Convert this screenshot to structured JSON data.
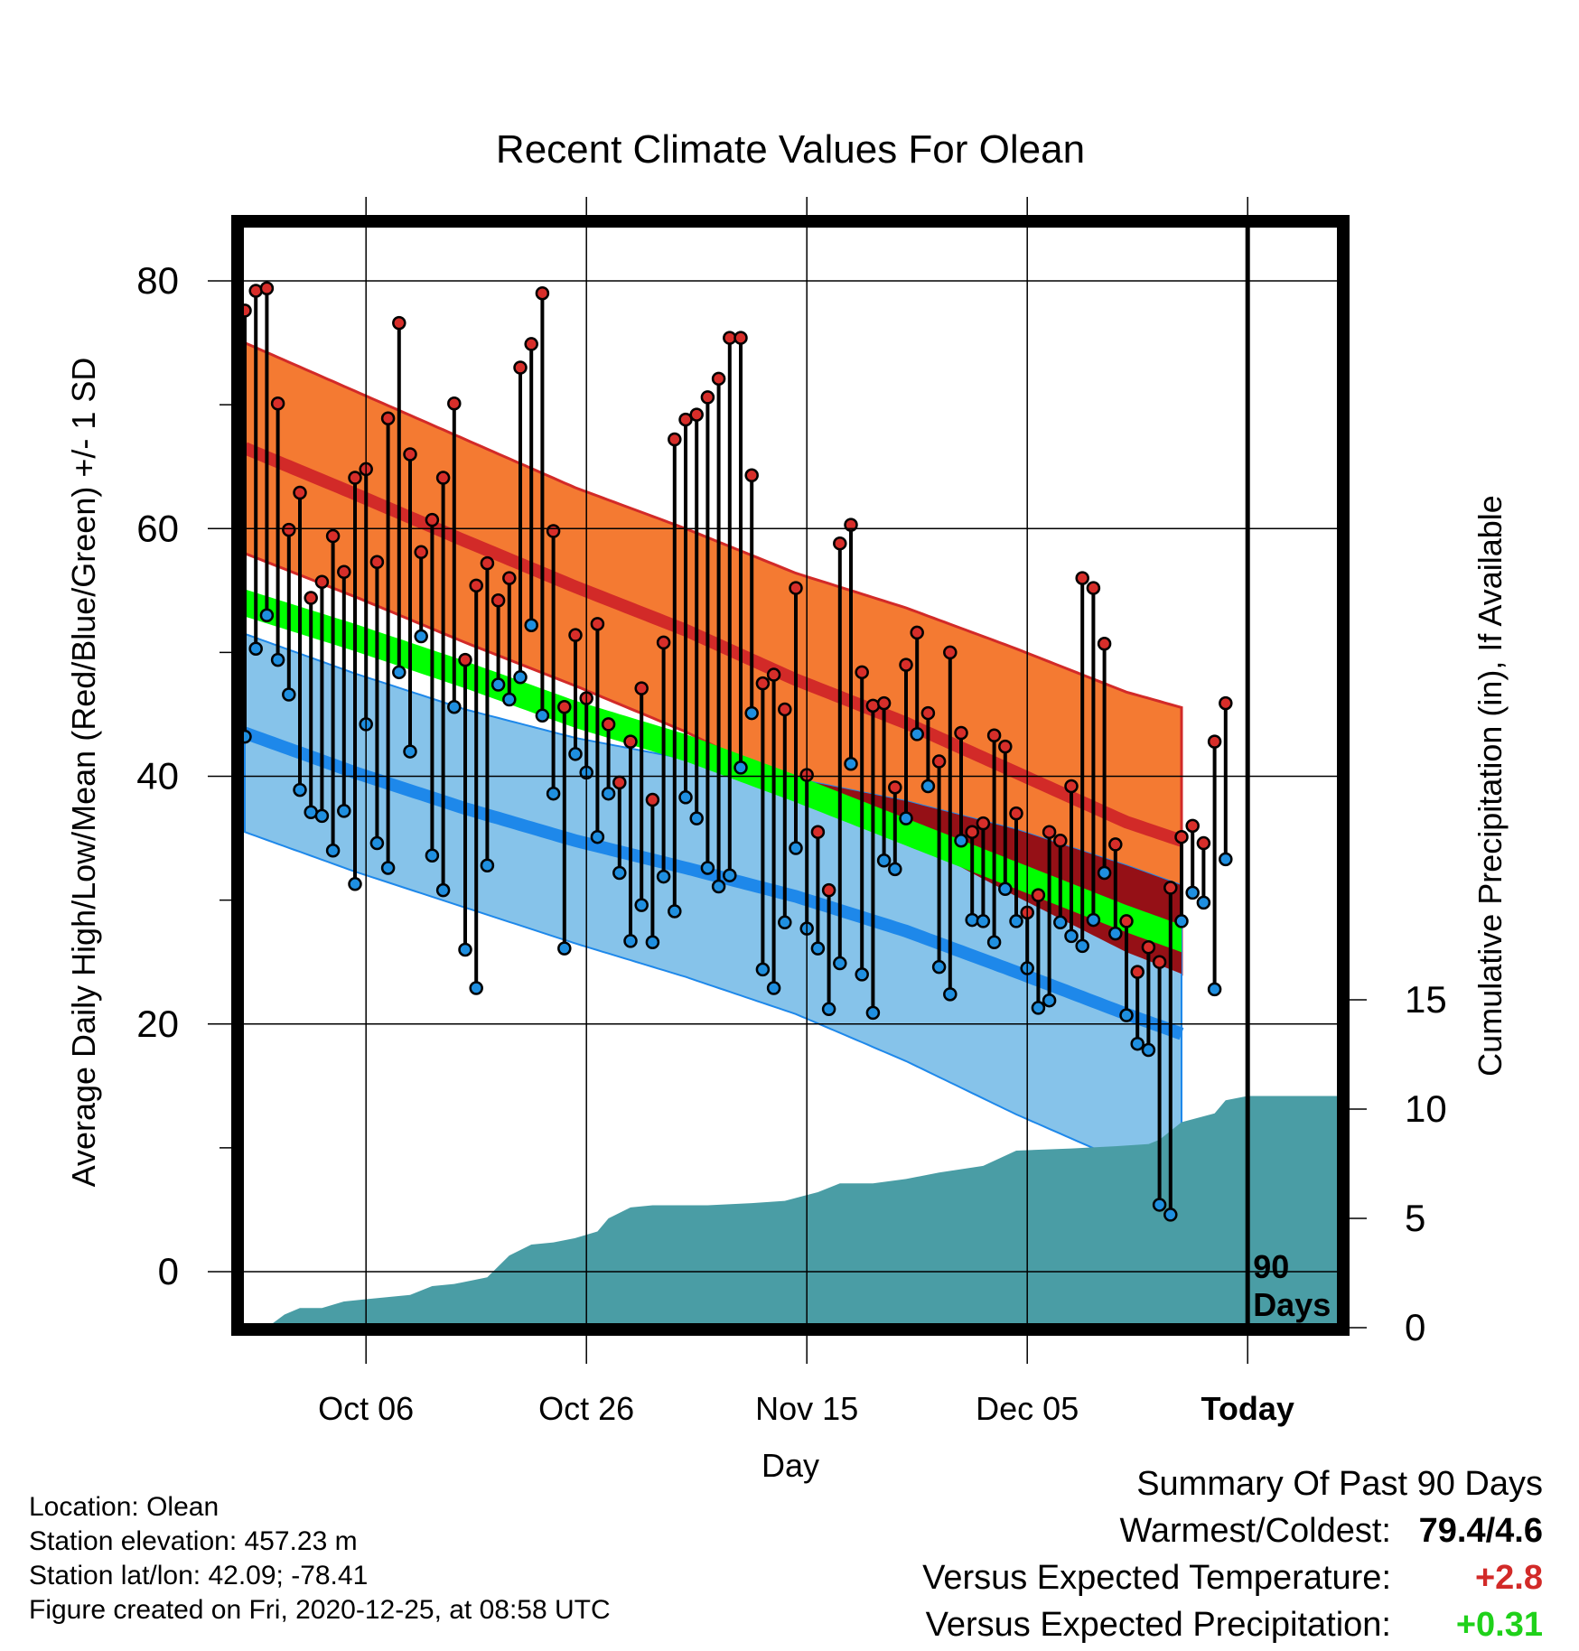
{
  "chart_data": {
    "type": "line",
    "title": "Recent Climate Values For Olean",
    "xlabel": "Day",
    "ylabel": "Average Daily High/Low/Mean (Red/Blue/Green) +/- 1 SD",
    "y2label": "Cumulative Precipitation (in), If Available",
    "ylim": [
      -5,
      86
    ],
    "y2lim": [
      0,
      17
    ],
    "yticks": [
      0,
      20,
      40,
      60,
      80
    ],
    "y2ticks": [
      0,
      5,
      10,
      15
    ],
    "grid": true,
    "xtick_labels": [
      {
        "day": 11,
        "label": "Oct 06"
      },
      {
        "day": 31,
        "label": "Oct 26"
      },
      {
        "day": 51,
        "label": "Nov 15"
      },
      {
        "day": 71,
        "label": "Dec 05"
      },
      {
        "day": 91,
        "label": "Today"
      }
    ],
    "today_label": "90 Days",
    "colors": {
      "high_band": "#f47a32",
      "high_line": "#d22a28",
      "low_band": "#86c3ea",
      "low_line": "#1e88ea",
      "mean_band": "#00ff00",
      "overlap": "#951016",
      "precip": "#4a9da5",
      "marker_high": "#d72e2a",
      "marker_low": "#1f8fe0"
    },
    "normals": {
      "day": [
        0,
        10,
        20,
        30,
        40,
        50,
        60,
        70,
        80,
        90,
        100
      ],
      "high": [
        66.5,
        62.8,
        59.0,
        55.3,
        51.8,
        47.8,
        44.3,
        40.3,
        36.3,
        33.3,
        31.5
      ],
      "high_sd": [
        8.5,
        8.3,
        8.2,
        8.0,
        8.2,
        8.6,
        9.3,
        10.0,
        10.5,
        11.0,
        11.3
      ],
      "low": [
        43.5,
        40.3,
        37.4,
        34.8,
        32.6,
        30.3,
        27.5,
        24.2,
        20.8,
        17.6,
        15.6
      ],
      "low_sd": [
        8.0,
        8.0,
        8.0,
        8.3,
        8.8,
        9.5,
        10.5,
        11.5,
        12.0,
        12.0,
        11.7
      ],
      "mean": [
        54.0,
        51.2,
        48.2,
        45.0,
        42.3,
        39.0,
        35.5,
        32.0,
        28.5,
        25.3,
        23.3
      ],
      "mean_sd": [
        1.1,
        1.1,
        1.1,
        1.1,
        1.1,
        1.1,
        1.1,
        1.1,
        1.1,
        1.1,
        1.1
      ]
    },
    "series": [
      {
        "name": "High",
        "values": [
          77.6,
          79.2,
          79.4,
          70.1,
          59.9,
          62.9,
          54.4,
          55.7,
          59.4,
          56.5,
          64.1,
          64.8,
          57.3,
          68.9,
          76.6,
          66.0,
          58.1,
          60.7,
          64.1,
          70.1,
          49.4,
          55.4,
          57.2,
          54.2,
          56.0,
          73.0,
          74.9,
          79.0,
          59.8,
          45.6,
          51.4,
          46.3,
          52.3,
          44.2,
          39.5,
          42.8,
          47.1,
          38.1,
          50.8,
          67.2,
          68.8,
          69.2,
          70.6,
          72.1,
          75.4,
          75.4,
          64.3,
          47.5,
          48.2,
          45.4,
          55.2,
          40.1,
          35.5,
          30.8,
          58.8,
          60.3,
          48.4,
          45.7,
          45.9,
          39.1,
          49.0,
          51.6,
          45.1,
          41.2,
          50.0,
          43.5,
          35.5,
          36.2,
          43.3,
          42.4,
          37.0,
          29.0,
          30.4,
          35.5,
          34.8,
          39.2,
          56.0,
          55.2,
          50.7,
          34.5,
          28.3,
          24.2,
          26.2,
          25.0,
          31.0,
          35.1,
          36.0,
          34.6,
          42.8,
          45.9
        ]
      },
      {
        "name": "Low",
        "values": [
          43.2,
          50.3,
          53.0,
          49.4,
          46.6,
          38.9,
          37.1,
          36.8,
          34.0,
          37.2,
          31.3,
          44.2,
          34.6,
          32.6,
          48.4,
          42.0,
          51.3,
          33.6,
          30.8,
          45.6,
          26.0,
          22.9,
          32.8,
          47.4,
          46.2,
          48.0,
          52.2,
          44.9,
          38.6,
          26.1,
          41.8,
          40.3,
          35.1,
          38.6,
          32.2,
          26.7,
          29.6,
          26.6,
          31.9,
          29.1,
          38.3,
          36.6,
          32.6,
          31.1,
          32.0,
          40.7,
          45.1,
          24.4,
          22.9,
          28.2,
          34.2,
          27.7,
          26.1,
          21.2,
          24.9,
          41.0,
          24.0,
          20.9,
          33.2,
          32.5,
          36.6,
          43.4,
          39.2,
          24.6,
          22.4,
          34.8,
          28.4,
          28.3,
          26.6,
          30.9,
          28.3,
          24.5,
          21.3,
          21.9,
          28.2,
          27.1,
          26.3,
          28.4,
          32.2,
          27.3,
          20.7,
          18.4,
          17.9,
          5.4,
          4.6,
          28.3,
          30.6,
          29.8,
          22.8,
          33.3
        ]
      }
    ],
    "precip_cumulative": {
      "day": [
        0,
        2,
        3.6,
        5,
        7,
        9,
        11,
        13,
        15,
        17,
        19,
        22,
        24,
        26,
        28,
        30,
        32,
        33,
        35,
        37,
        42,
        46,
        49,
        52,
        54,
        57,
        60,
        63,
        67,
        70,
        75,
        79,
        82,
        83,
        85,
        88,
        89,
        91,
        100
      ],
      "value": [
        0,
        0,
        0.6,
        0.9,
        0.9,
        1.2,
        1.3,
        1.4,
        1.5,
        1.9,
        2.0,
        2.3,
        3.3,
        3.8,
        3.9,
        4.1,
        4.4,
        5.0,
        5.5,
        5.6,
        5.6,
        5.7,
        5.8,
        6.2,
        6.6,
        6.6,
        6.8,
        7.1,
        7.4,
        8.1,
        8.2,
        8.3,
        8.4,
        8.6,
        9.4,
        9.8,
        10.4,
        10.6,
        10.6
      ]
    }
  },
  "info": {
    "location": "Location: Olean",
    "elevation": "Station elevation: 457.23 m",
    "latlon": "Station lat/lon: 42.09; -78.41",
    "created": "Figure created on Fri, 2020-12-25, at 08:58 UTC"
  },
  "summary": {
    "title": "Summary Of Past 90 Days",
    "warmest_coldest_label": "Warmest/Coldest:",
    "warmest_coldest_value": "79.4/4.6",
    "temp_label": "Versus Expected Temperature:",
    "temp_value": "+2.8",
    "temp_color": "#d22a28",
    "precip_label": "Versus Expected Precipitation:",
    "precip_value": "+0.31",
    "precip_color": "#1fd11a"
  }
}
